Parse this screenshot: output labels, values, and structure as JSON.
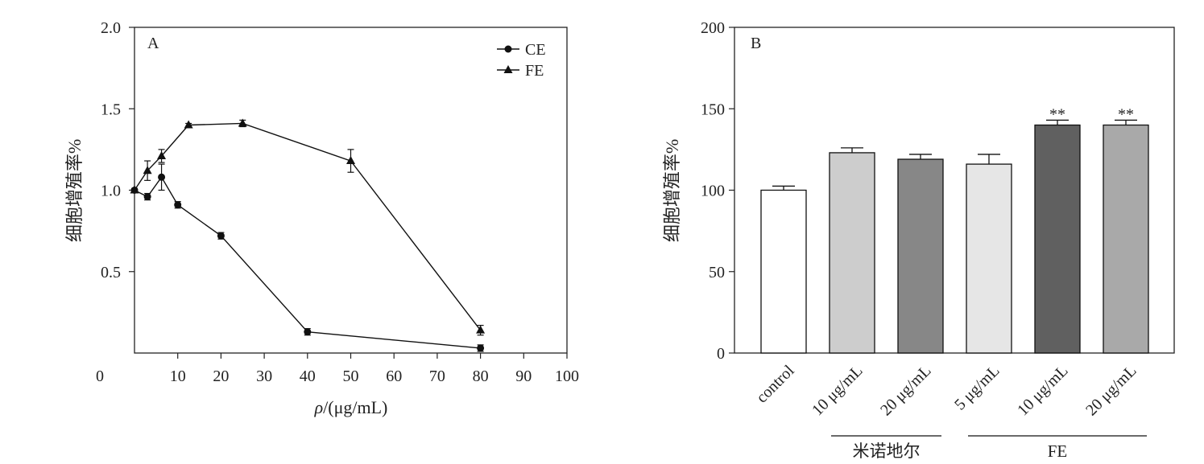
{
  "chart_data": [
    {
      "type": "line",
      "panel_label": "A",
      "xlabel_symbol": "ρ",
      "xlabel_rest": "/(μg/mL)",
      "ylabel": "细胞增殖率%",
      "xlim": [
        0,
        100
      ],
      "ylim": [
        0,
        2.0
      ],
      "x_ticks": [
        "0",
        "10",
        "20",
        "30",
        "40",
        "50",
        "60",
        "70",
        "80",
        "90",
        "100"
      ],
      "y_ticks": [
        "0.5",
        "1.0",
        "1.5",
        "2.0"
      ],
      "y_tick_values": [
        0.5,
        1.0,
        1.5,
        2.0
      ],
      "legend_position": "top-right",
      "series": [
        {
          "name": "CE",
          "marker": "circle",
          "x": [
            0,
            3,
            6.25,
            10,
            20,
            40,
            80
          ],
          "y": [
            1.0,
            0.96,
            1.08,
            0.91,
            0.72,
            0.13,
            0.03
          ],
          "err": [
            0.01,
            0.02,
            0.08,
            0.02,
            0.02,
            0.02,
            0.02
          ]
        },
        {
          "name": "FE",
          "marker": "triangle",
          "x": [
            0,
            3,
            6.25,
            12.5,
            25,
            50,
            80
          ],
          "y": [
            1.0,
            1.12,
            1.21,
            1.4,
            1.41,
            1.18,
            0.14
          ],
          "err": [
            0.01,
            0.06,
            0.04,
            0.01,
            0.02,
            0.07,
            0.03
          ]
        }
      ]
    },
    {
      "type": "bar",
      "panel_label": "B",
      "ylabel": "细胞增殖率%",
      "ylim": [
        0,
        200
      ],
      "y_ticks": [
        "0",
        "50",
        "100",
        "150",
        "200"
      ],
      "y_tick_values": [
        0,
        50,
        100,
        150,
        200
      ],
      "categories": [
        "control",
        "10 μg/mL",
        "20 μg/mL",
        "5 μg/mL",
        "10 μg/mL",
        "20 μg/mL"
      ],
      "values": [
        100,
        123,
        119,
        116,
        140,
        140
      ],
      "errors": [
        2.5,
        3,
        3,
        6,
        3,
        3
      ],
      "colors": [
        "#ffffff",
        "#cdcdcd",
        "#878787",
        "#e6e6e6",
        "#606060",
        "#a9a9a9"
      ],
      "annotations": [
        "",
        "",
        "",
        "",
        "**",
        "**"
      ],
      "groups": [
        {
          "label": "米诺地尔",
          "from": 1,
          "to": 2
        },
        {
          "label": "FE",
          "from": 3,
          "to": 5
        }
      ]
    }
  ]
}
